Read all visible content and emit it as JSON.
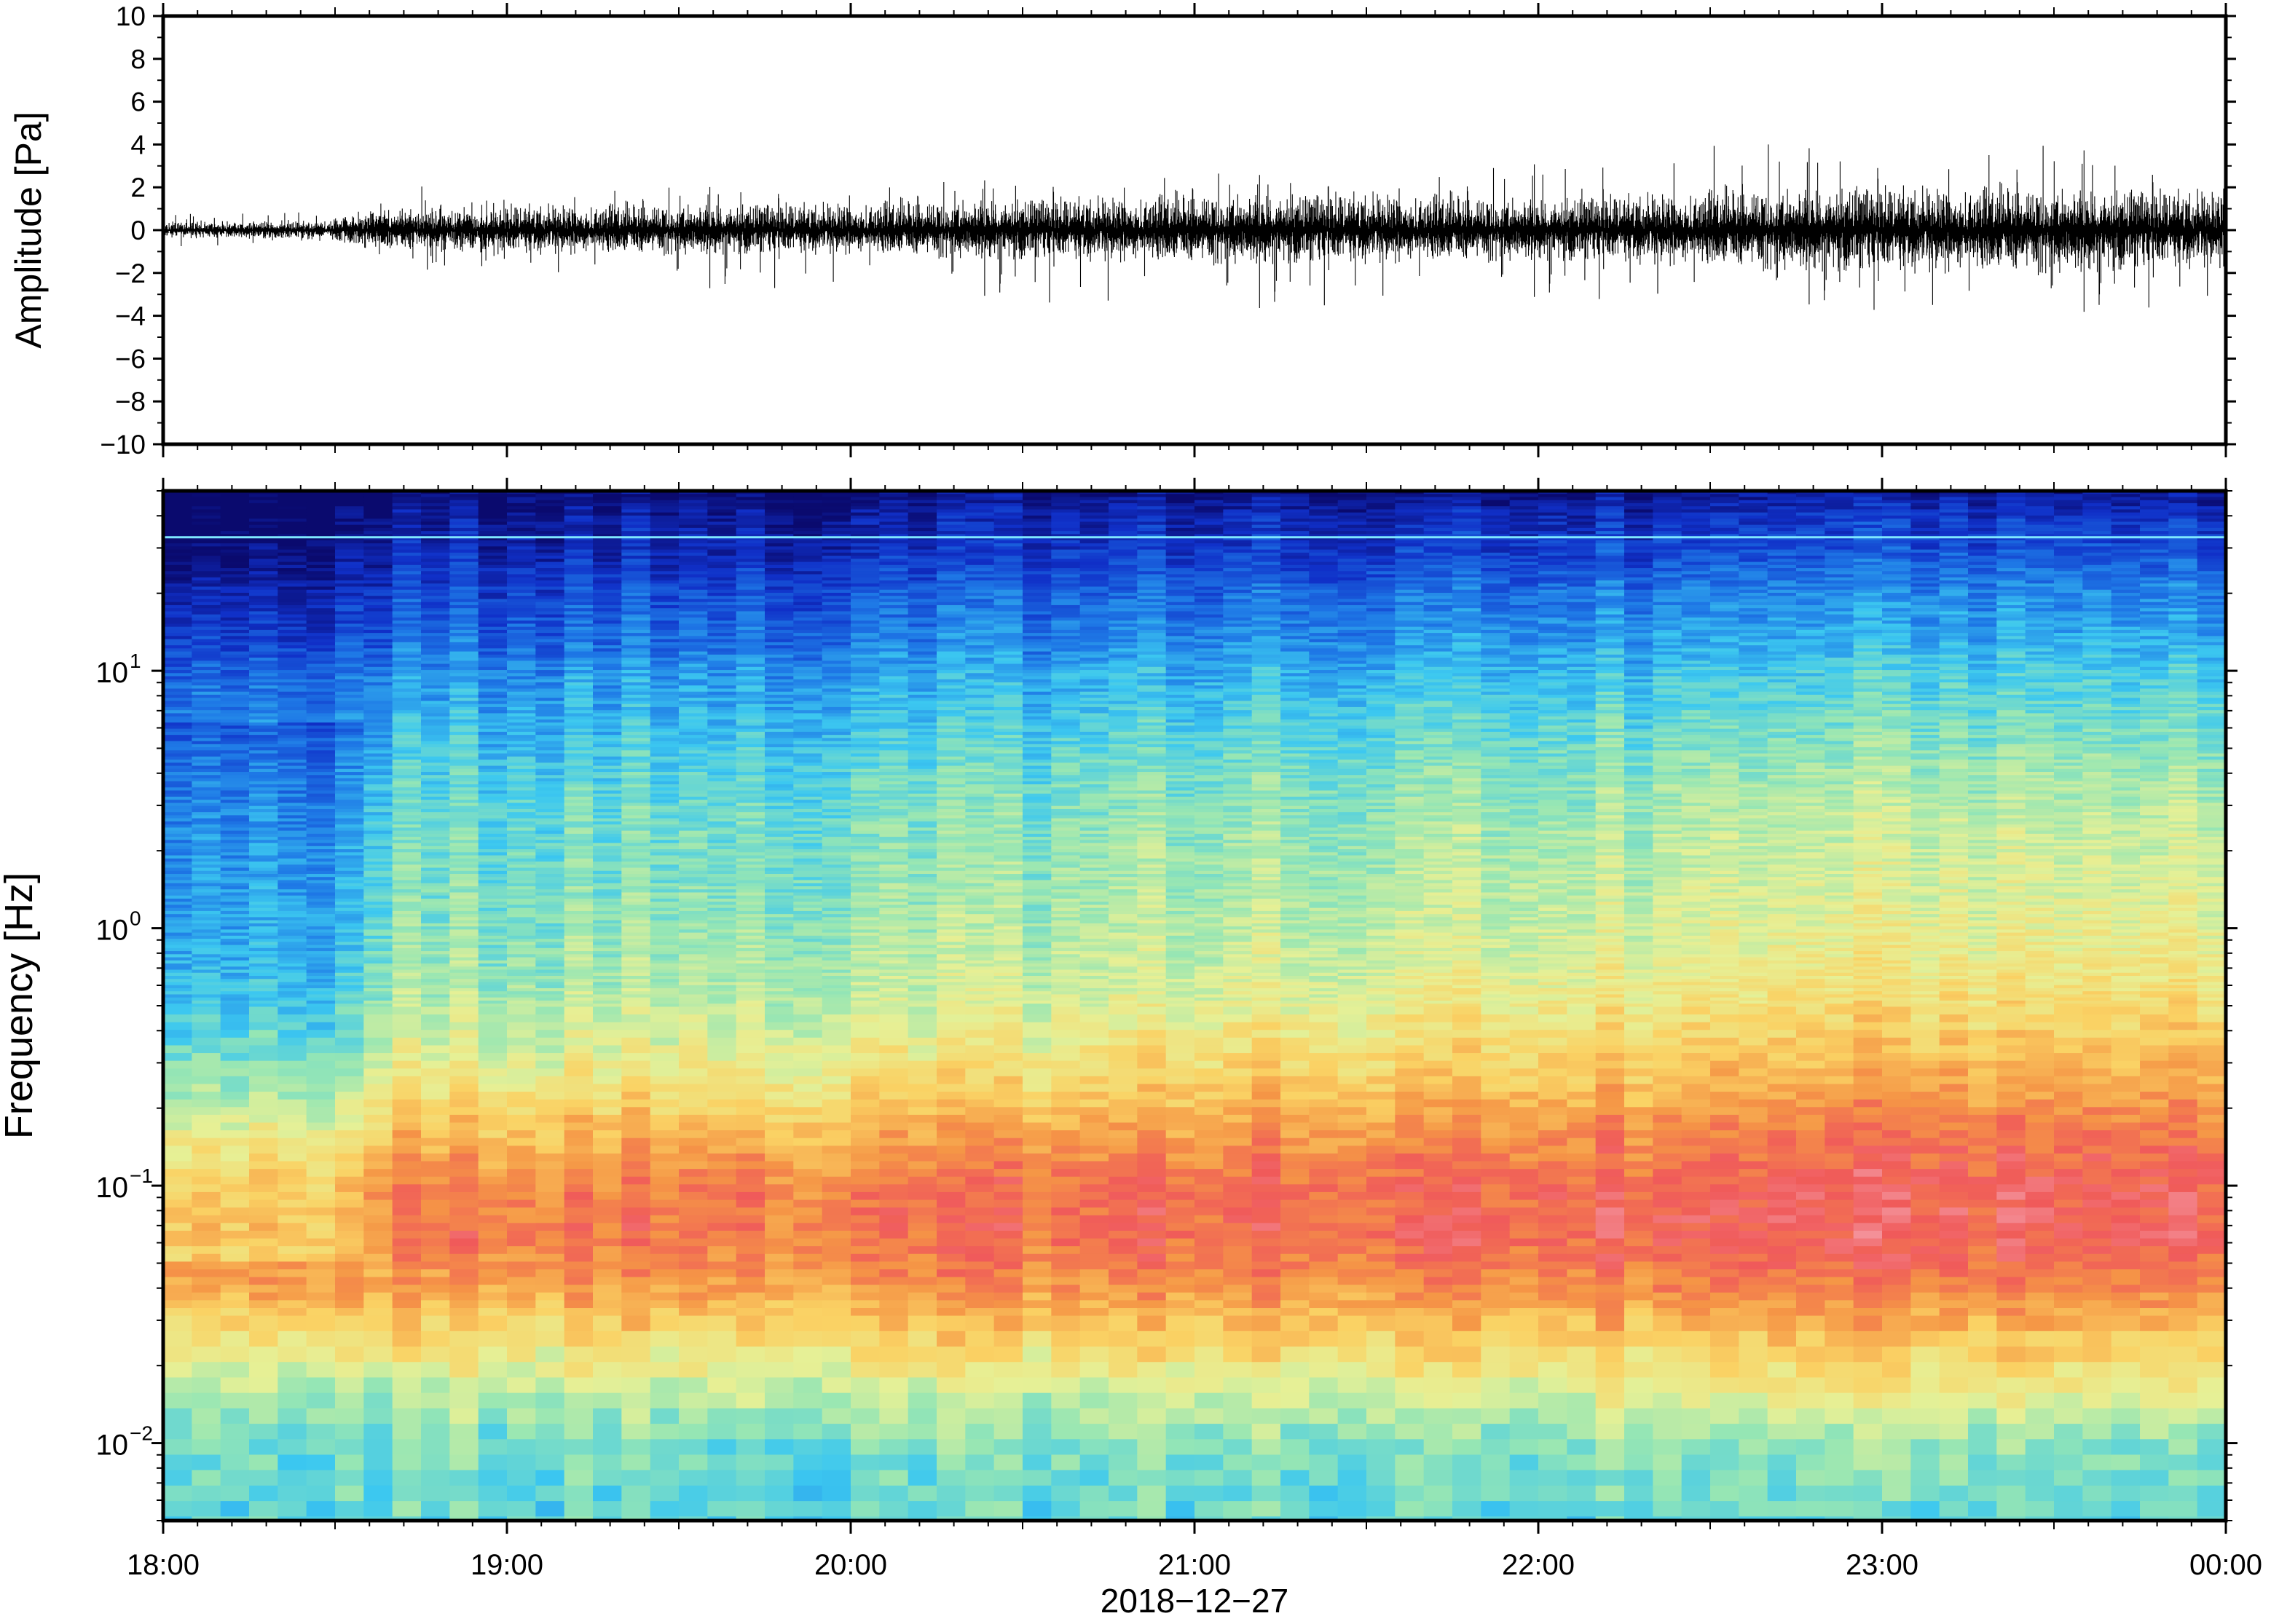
{
  "chart_data": [
    {
      "type": "line",
      "panel": "waveform",
      "xlabel": "",
      "ylabel": "Amplitude [Pa]",
      "xlim": [
        "18:00",
        "00:00"
      ],
      "ylim": [
        -10,
        10
      ],
      "yticks": [
        "10",
        "8",
        "6",
        "4",
        "2",
        "0",
        "−2",
        "−4",
        "−6",
        "−8",
        "−10"
      ],
      "grid": false,
      "series_color": "#000000",
      "envelope": {
        "t_hours": [
          0.0,
          0.5,
          0.55,
          1.0,
          1.5,
          2.0,
          2.5,
          3.0,
          3.5,
          4.0,
          4.5,
          5.0,
          5.5,
          6.0
        ],
        "typical_max": [
          0.4,
          0.5,
          1.0,
          1.3,
          1.3,
          1.4,
          1.6,
          1.8,
          1.9,
          1.6,
          2.0,
          2.2,
          2.1,
          2.0
        ],
        "typical_min": [
          -0.4,
          -0.5,
          -1.0,
          -1.3,
          -1.3,
          -1.3,
          -1.6,
          -1.8,
          -1.8,
          -1.6,
          -2.0,
          -2.3,
          -2.3,
          -2.0
        ],
        "peak_max": [
          1.0,
          0.8,
          2.5,
          2.0,
          2.0,
          2.1,
          2.4,
          2.7,
          2.4,
          3.1,
          4.3,
          3.5,
          4.0,
          2.5
        ],
        "peak_min": [
          -1.0,
          -0.8,
          -2.3,
          -2.0,
          -3.0,
          -2.8,
          -3.5,
          -4.2,
          -3.6,
          -3.4,
          -3.5,
          -4.0,
          -4.3,
          -3.5
        ]
      }
    },
    {
      "type": "heatmap",
      "panel": "spectrogram",
      "title": "",
      "xlabel": "2018−12−27",
      "ylabel": "Frequency [Hz]",
      "x_tick_labels": [
        "18:00",
        "19:00",
        "20:00",
        "21:00",
        "22:00",
        "23:00",
        "00:00"
      ],
      "y_tick_labels": [
        {
          "base": "10",
          "exp": "1",
          "value": 10
        },
        {
          "base": "10",
          "exp": "0",
          "value": 1
        },
        {
          "base": "10",
          "exp": "−1",
          "value": 0.1
        },
        {
          "base": "10",
          "exp": "−2",
          "value": 0.01
        }
      ],
      "yscale": "log",
      "ylim": [
        0.005,
        50
      ],
      "xlim_hours": [
        0,
        6
      ],
      "colormap": [
        "#0a0a6e",
        "#1030c8",
        "#1e78e6",
        "#3cc8f0",
        "#96e6b4",
        "#e6f096",
        "#fad264",
        "#f59646",
        "#f05a5a",
        "#f5a0aa"
      ],
      "power_profile": {
        "log10_freq": [
          1.7,
          1.6,
          1.45,
          1.3,
          1.1,
          1.0,
          0.8,
          0.6,
          0.4,
          0.2,
          0.0,
          -0.2,
          -0.4,
          -0.6,
          -0.8,
          -1.0,
          -1.2,
          -1.4,
          -1.6,
          -1.8,
          -2.0,
          -2.3
        ],
        "level_early": [
          0.0,
          0.04,
          0.08,
          0.14,
          0.2,
          0.25,
          0.3,
          0.35,
          0.38,
          0.4,
          0.42,
          0.45,
          0.5,
          0.58,
          0.7,
          0.8,
          0.82,
          0.75,
          0.62,
          0.5,
          0.4,
          0.38
        ],
        "level_late": [
          0.05,
          0.12,
          0.18,
          0.26,
          0.32,
          0.36,
          0.42,
          0.48,
          0.52,
          0.55,
          0.58,
          0.62,
          0.68,
          0.76,
          0.84,
          0.9,
          0.9,
          0.82,
          0.7,
          0.58,
          0.45,
          0.38
        ]
      },
      "tone_line_hz": 33
    }
  ]
}
